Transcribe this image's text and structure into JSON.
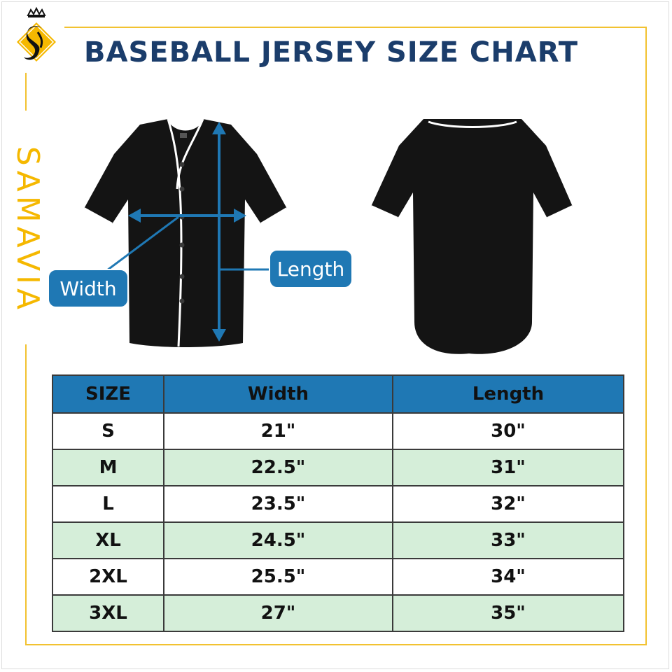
{
  "title": "BASEBALL JERSEY SIZE CHART",
  "brand": "SAMAVIA",
  "logo_icon": "samavia-logo-icon",
  "colors": {
    "title": "#1b3d6b",
    "frame": "#f2c230",
    "brand": "#f5b800",
    "callout": "#1f78b4",
    "header_bg": "#1f78b4",
    "stripe_bg": "#d5eed9",
    "jersey": "#141414",
    "piping": "#ffffff"
  },
  "diagram": {
    "width_label": "Width",
    "length_label": "Length"
  },
  "table": {
    "headers": [
      "SIZE",
      "Width",
      "Length"
    ],
    "rows": [
      {
        "size": "S",
        "width": "21\"",
        "length": "30\""
      },
      {
        "size": "M",
        "width": "22.5\"",
        "length": "31\""
      },
      {
        "size": "L",
        "width": "23.5\"",
        "length": "32\""
      },
      {
        "size": "XL",
        "width": "24.5\"",
        "length": "33\""
      },
      {
        "size": "2XL",
        "width": "25.5\"",
        "length": "34\""
      },
      {
        "size": "3XL",
        "width": "27\"",
        "length": "35\""
      }
    ]
  }
}
